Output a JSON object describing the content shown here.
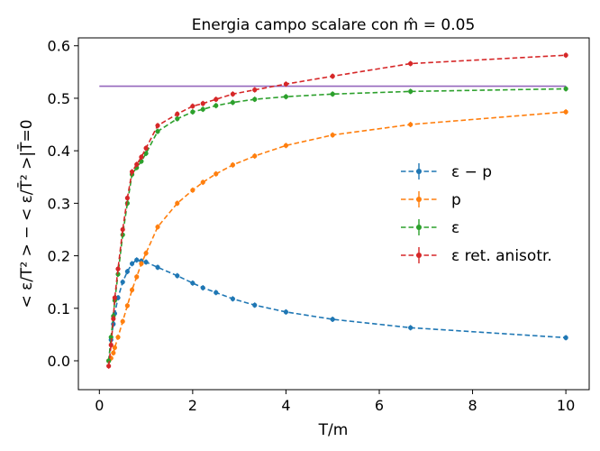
{
  "chart_data": {
    "type": "line",
    "title": "Energia campo scalare con m̂ = 0.05",
    "xlabel": "T/m",
    "ylabel": "< ε/T² > − < ε/T̄² >|T̄=0",
    "xlim": [
      -0.45,
      10.5
    ],
    "ylim": [
      -0.055,
      0.615
    ],
    "xticks": [
      0,
      2,
      4,
      6,
      8,
      10
    ],
    "yticks": [
      0.0,
      0.1,
      0.2,
      0.3,
      0.4,
      0.5,
      0.6
    ],
    "grid": false,
    "legend_position": "center-right",
    "hline": {
      "y": 0.523,
      "color": "#9467bd"
    },
    "series": [
      {
        "name": "ε − p",
        "color": "#1f77b4",
        "x": [
          0.2,
          0.25,
          0.3,
          0.33,
          0.4,
          0.5,
          0.6,
          0.7,
          0.8,
          0.9,
          1.0,
          1.25,
          1.67,
          2.0,
          2.22,
          2.5,
          2.86,
          3.33,
          4.0,
          5.0,
          6.67,
          10.0
        ],
        "y": [
          0.0,
          0.04,
          0.07,
          0.09,
          0.12,
          0.15,
          0.17,
          0.185,
          0.192,
          0.19,
          0.188,
          0.178,
          0.162,
          0.148,
          0.139,
          0.13,
          0.118,
          0.106,
          0.093,
          0.079,
          0.063,
          0.044
        ]
      },
      {
        "name": "p",
        "color": "#ff7f0e",
        "x": [
          0.2,
          0.25,
          0.3,
          0.33,
          0.4,
          0.5,
          0.6,
          0.7,
          0.8,
          0.9,
          1.0,
          1.25,
          1.67,
          2.0,
          2.22,
          2.5,
          2.86,
          3.33,
          4.0,
          5.0,
          6.67,
          10.0
        ],
        "y": [
          0.0,
          0.005,
          0.015,
          0.025,
          0.045,
          0.075,
          0.105,
          0.135,
          0.16,
          0.185,
          0.205,
          0.255,
          0.3,
          0.325,
          0.34,
          0.356,
          0.373,
          0.39,
          0.41,
          0.43,
          0.45,
          0.474
        ]
      },
      {
        "name": "ε",
        "color": "#2ca02c",
        "x": [
          0.2,
          0.25,
          0.3,
          0.33,
          0.4,
          0.5,
          0.6,
          0.7,
          0.8,
          0.9,
          1.0,
          1.25,
          1.67,
          2.0,
          2.22,
          2.5,
          2.86,
          3.33,
          4.0,
          5.0,
          6.67,
          10.0
        ],
        "y": [
          0.0,
          0.045,
          0.085,
          0.115,
          0.165,
          0.24,
          0.3,
          0.355,
          0.368,
          0.38,
          0.395,
          0.437,
          0.461,
          0.474,
          0.479,
          0.486,
          0.492,
          0.498,
          0.503,
          0.508,
          0.513,
          0.518
        ]
      },
      {
        "name": "ε ret. anisotr.",
        "color": "#d62728",
        "x": [
          0.2,
          0.25,
          0.3,
          0.33,
          0.4,
          0.5,
          0.6,
          0.7,
          0.8,
          0.9,
          1.0,
          1.25,
          1.67,
          2.0,
          2.22,
          2.5,
          2.86,
          3.33,
          4.0,
          5.0,
          6.67,
          10.0
        ],
        "y": [
          -0.01,
          0.03,
          0.08,
          0.12,
          0.175,
          0.25,
          0.31,
          0.36,
          0.374,
          0.388,
          0.405,
          0.448,
          0.47,
          0.485,
          0.49,
          0.498,
          0.508,
          0.516,
          0.527,
          0.542,
          0.566,
          0.582
        ]
      }
    ]
  }
}
